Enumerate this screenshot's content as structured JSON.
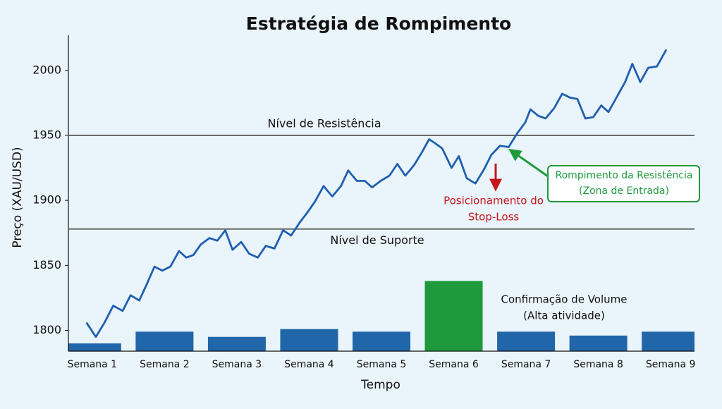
{
  "chart_data": {
    "type": "line",
    "title": "Estratégia de Rompimento",
    "xlabel": "Tempo",
    "ylabel": "Preço (XAU/USD)",
    "categories": [
      "Semana 1",
      "Semana 2",
      "Semana 3",
      "Semana 4",
      "Semana 5",
      "Semana 6",
      "Semana 7",
      "Semana 8",
      "Semana 9"
    ],
    "xlim": [
      0.67,
      9.33
    ],
    "ylim": [
      1784,
      2027
    ],
    "yticks": [
      1800,
      1850,
      1900,
      1950,
      2000
    ],
    "series": [
      {
        "color": "#1f5fb0",
        "x": [
          0.92,
          1.05,
          1.17,
          1.29,
          1.42,
          1.53,
          1.65,
          1.75,
          1.86,
          1.97,
          2.08,
          2.2,
          2.3,
          2.4,
          2.5,
          2.62,
          2.73,
          2.84,
          2.94,
          3.06,
          3.17,
          3.29,
          3.4,
          3.52,
          3.64,
          3.75,
          3.87,
          3.98,
          4.08,
          4.2,
          4.32,
          4.44,
          4.54,
          4.66,
          4.77,
          4.87,
          4.99,
          5.11,
          5.22,
          5.33,
          5.45,
          5.56,
          5.66,
          5.74,
          5.84,
          5.97,
          6.07,
          6.18,
          6.3,
          6.42,
          6.52,
          6.64,
          6.76,
          6.87,
          6.99,
          7.06,
          7.17,
          7.27,
          7.39,
          7.5,
          7.61,
          7.71,
          7.82,
          7.93,
          8.04,
          8.14,
          8.25,
          8.37,
          8.47,
          8.58,
          8.69,
          8.81,
          8.94
        ],
        "values": [
          1806,
          1795,
          1806,
          1819,
          1815,
          1827,
          1823,
          1835,
          1849,
          1846,
          1849,
          1861,
          1856,
          1858,
          1866,
          1871,
          1869,
          1877,
          1862,
          1868,
          1859,
          1856,
          1865,
          1863,
          1877,
          1873,
          1883,
          1891,
          1899,
          1911,
          1903,
          1911,
          1923,
          1915,
          1915,
          1910,
          1915,
          1919,
          1928,
          1919,
          1927,
          1937,
          1947,
          1944,
          1940,
          1925,
          1934,
          1917,
          1913,
          1924,
          1935,
          1942,
          1941,
          1951,
          1960,
          1970,
          1965,
          1963,
          1971,
          1982,
          1979,
          1978,
          1963,
          1964,
          1973,
          1968,
          1979,
          1991,
          2005,
          1991,
          2002,
          2003,
          2016
        ]
      }
    ],
    "volume": {
      "values": [
        1790,
        1799,
        1795,
        1801,
        1799,
        1838,
        1799,
        1796,
        1799
      ],
      "colors": [
        "#2166a8",
        "#2166a8",
        "#2166a8",
        "#2166a8",
        "#2166a8",
        "#1e9a3c",
        "#2166a8",
        "#2166a8",
        "#2166a8"
      ]
    },
    "hlines": [
      {
        "value": 1950,
        "label": "Nível de Resistência"
      },
      {
        "value": 1878,
        "label": "Nível de Suporte"
      }
    ],
    "annotations": [
      {
        "lines": [
          "Posicionamento do",
          "Stop-Loss"
        ],
        "color": "#c4161c"
      },
      {
        "lines": [
          "Rompimento da Resistência",
          "(Zona de Entrada)"
        ],
        "color": "#1e9a3c"
      },
      {
        "lines": [
          "Confirmação de Volume",
          "(Alta atividade)"
        ],
        "color": "#111111"
      }
    ]
  }
}
